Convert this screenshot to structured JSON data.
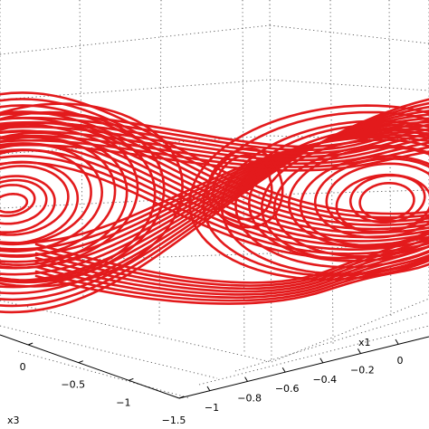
{
  "chart_data": {
    "type": "line3d",
    "title": "",
    "x1_axis": {
      "label": "x1",
      "ticks": [
        {
          "value": -1,
          "label": "−1"
        },
        {
          "value": -0.8,
          "label": "−0.8"
        },
        {
          "value": -0.6,
          "label": "−0.6"
        },
        {
          "value": -0.4,
          "label": "−0.4"
        },
        {
          "value": -0.2,
          "label": "−0.2"
        },
        {
          "value": 0,
          "label": "0"
        }
      ]
    },
    "x3_axis": {
      "label": "x3",
      "ticks": [
        {
          "value": 0,
          "label": "0"
        },
        {
          "value": -0.5,
          "label": "−0.5"
        },
        {
          "value": -1,
          "label": "−1"
        },
        {
          "value": -1.5,
          "label": "−1.5"
        }
      ]
    },
    "grid": true,
    "series": [
      {
        "color": "#e31a1c",
        "shape": "double-scroll attractor",
        "lobes": [
          {
            "center": [
              12,
              224
            ],
            "rx_range": [
              18,
              150
            ],
            "ry_range": [
              10,
              100
            ],
            "loops": 14
          },
          {
            "center": [
              428,
              222
            ],
            "rx_range": [
              30,
              175
            ],
            "ry_range": [
              20,
              95
            ],
            "loops": 14
          }
        ]
      }
    ]
  }
}
